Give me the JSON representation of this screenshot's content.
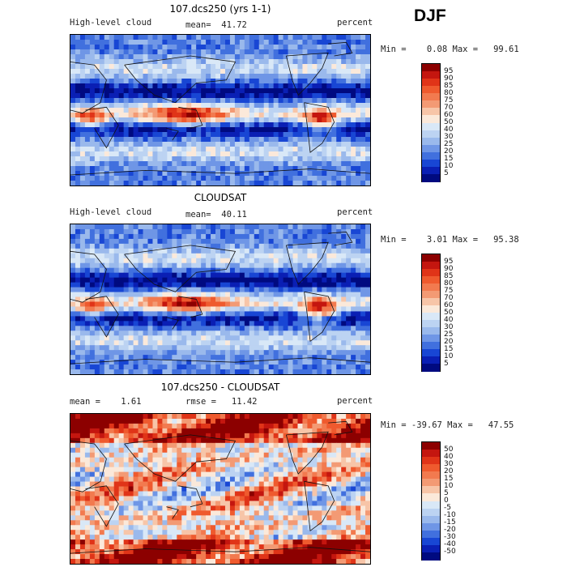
{
  "season": "DJF",
  "panels": [
    {
      "title": "107.dcs250 (yrs 1-1)",
      "left_label": "High-level cloud",
      "center_label": "mean=  41.72",
      "right_label": "percent",
      "minmax": "Min =    0.08 Max =   99.61",
      "colorbar_labels": [
        "95",
        "90",
        "85",
        "80",
        "75",
        "70",
        "60",
        "50",
        "40",
        "30",
        "25",
        "20",
        "15",
        "10",
        "5"
      ],
      "palette": [
        "#8c0000",
        "#c4160f",
        "#e03418",
        "#ef5a2e",
        "#f27a4f",
        "#f39a74",
        "#f7c5a8",
        "#fbe9da",
        "#d9e8f7",
        "#bcd3f2",
        "#9ab9ec",
        "#6f96e6",
        "#4170de",
        "#1846d4",
        "#0a1fb4",
        "#000a80"
      ]
    },
    {
      "title": "CLOUDSAT",
      "left_label": "High-level cloud",
      "center_label": "mean=  40.11",
      "right_label": "percent",
      "minmax": "Min =    3.01 Max =   95.38",
      "colorbar_labels": [
        "95",
        "90",
        "85",
        "80",
        "75",
        "70",
        "60",
        "50",
        "40",
        "30",
        "25",
        "20",
        "15",
        "10",
        "5"
      ],
      "palette": [
        "#8c0000",
        "#c4160f",
        "#e03418",
        "#ef5a2e",
        "#f27a4f",
        "#f39a74",
        "#f7c5a8",
        "#fbe9da",
        "#d9e8f7",
        "#bcd3f2",
        "#9ab9ec",
        "#6f96e6",
        "#4170de",
        "#1846d4",
        "#0a1fb4",
        "#000a80"
      ]
    },
    {
      "title": "107.dcs250 - CLOUDSAT",
      "left_label": "mean =    1.61",
      "center_label": "rmse =   11.42",
      "right_label": "percent",
      "minmax": "Min = -39.67 Max =   47.55",
      "colorbar_labels": [
        "50",
        "40",
        "30",
        "20",
        "15",
        "10",
        "5",
        "0",
        "-5",
        "-10",
        "-15",
        "-20",
        "-30",
        "-40",
        "-50"
      ],
      "palette": [
        "#8c0000",
        "#c4160f",
        "#e03418",
        "#ef5a2e",
        "#f27a4f",
        "#f39a74",
        "#f7c5a8",
        "#fbe9da",
        "#d9e8f7",
        "#bcd3f2",
        "#9ab9ec",
        "#6f96e6",
        "#4170de",
        "#1846d4",
        "#0a1fb4",
        "#000a80"
      ]
    }
  ]
}
